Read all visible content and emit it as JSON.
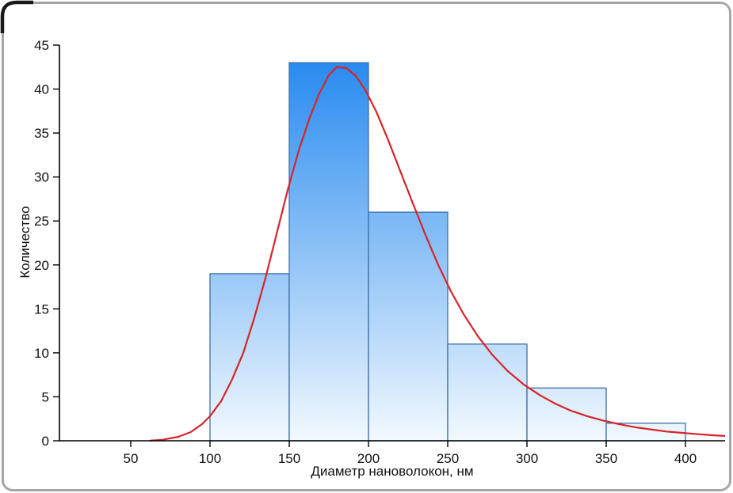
{
  "figure": {
    "background": "#ffffff",
    "frame_color": "#a6a6a6",
    "corner_mark_color": "#1a1a1a"
  },
  "chart_data": {
    "type": "bar",
    "subtype": "histogram_with_fit_curve",
    "title": "",
    "xlabel": "Диаметр нановолокон, нм",
    "ylabel": "Количество",
    "xlim": [
      5,
      425
    ],
    "ylim": [
      0,
      45
    ],
    "x_ticks": [
      50,
      100,
      150,
      200,
      250,
      300,
      350,
      400
    ],
    "y_ticks": [
      0,
      5,
      10,
      15,
      20,
      25,
      30,
      35,
      40,
      45
    ],
    "grid": false,
    "legend": null,
    "bin_edges": [
      100,
      150,
      200,
      250,
      300,
      350,
      400
    ],
    "values": [
      19,
      43,
      26,
      11,
      6,
      2
    ],
    "bar_style": {
      "gradient_top": "#1f86ef",
      "gradient_bottom": "#f2f9fe",
      "border": "#3f6fa5"
    },
    "axis_color": "#000000",
    "tick_label_color": "#111111",
    "fit_curve": {
      "name": "distribution-fit",
      "color": "#d8232a",
      "points": [
        [
          62,
          0.02
        ],
        [
          70,
          0.12
        ],
        [
          80,
          0.45
        ],
        [
          88,
          1.0
        ],
        [
          95,
          1.9
        ],
        [
          100,
          2.8
        ],
        [
          107,
          4.5
        ],
        [
          114,
          7.0
        ],
        [
          121,
          10.0
        ],
        [
          128,
          14.0
        ],
        [
          135,
          18.5
        ],
        [
          142,
          23.5
        ],
        [
          149,
          28.5
        ],
        [
          156,
          33.0
        ],
        [
          163,
          36.8
        ],
        [
          169,
          39.5
        ],
        [
          175,
          41.6
        ],
        [
          180,
          42.5
        ],
        [
          186,
          42.4
        ],
        [
          192,
          41.5
        ],
        [
          198,
          39.9
        ],
        [
          205,
          37.4
        ],
        [
          212,
          34.4
        ],
        [
          220,
          30.7
        ],
        [
          228,
          27.0
        ],
        [
          236,
          23.4
        ],
        [
          244,
          20.0
        ],
        [
          252,
          17.0
        ],
        [
          260,
          14.4
        ],
        [
          269,
          11.9
        ],
        [
          278,
          9.8
        ],
        [
          288,
          7.9
        ],
        [
          298,
          6.4
        ],
        [
          308,
          5.2
        ],
        [
          318,
          4.2
        ],
        [
          328,
          3.4
        ],
        [
          338,
          2.8
        ],
        [
          348,
          2.3
        ],
        [
          358,
          1.9
        ],
        [
          368,
          1.55
        ],
        [
          378,
          1.3
        ],
        [
          388,
          1.05
        ],
        [
          398,
          0.9
        ],
        [
          408,
          0.75
        ],
        [
          418,
          0.62
        ],
        [
          425,
          0.55
        ]
      ]
    }
  }
}
